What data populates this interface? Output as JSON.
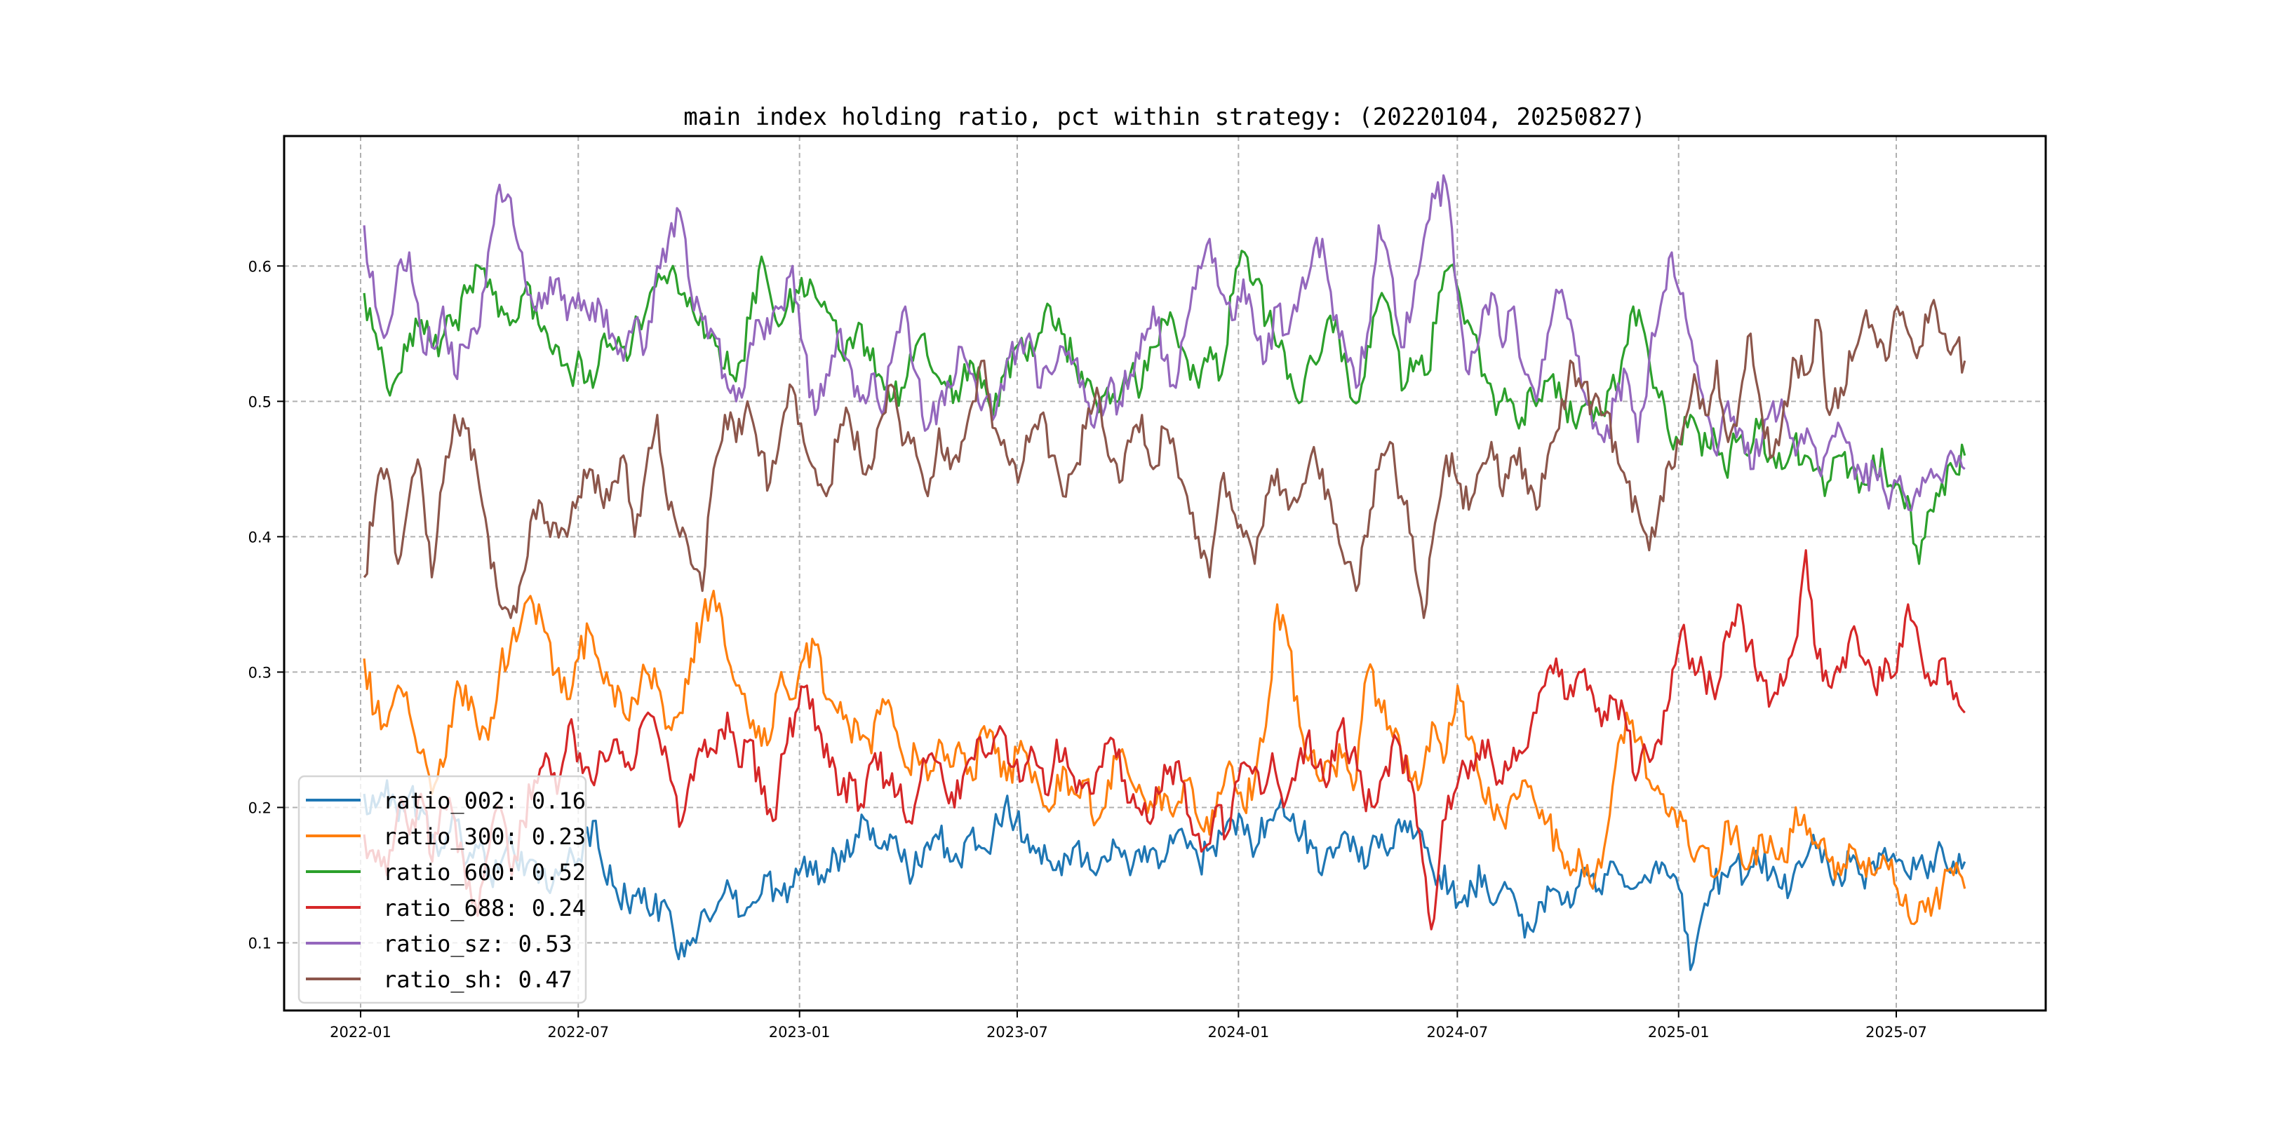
{
  "chart_data": {
    "type": "line",
    "title": "main index holding ratio, pct within strategy: (20220104, 20250827)",
    "xlabel": "",
    "ylabel": "",
    "x_range": [
      "2021-12-01",
      "2025-10-15"
    ],
    "ylim": [
      0.05,
      0.696
    ],
    "grid": true,
    "legend_position": "lower-left",
    "x_ticks": [
      "2022-01",
      "2022-07",
      "2023-01",
      "2023-07",
      "2024-01",
      "2024-07",
      "2025-01",
      "2025-07"
    ],
    "y_ticks": [
      "0.1",
      "0.2",
      "0.3",
      "0.4",
      "0.5",
      "0.6"
    ],
    "y_tick_values": [
      0.1,
      0.2,
      0.3,
      0.4,
      0.5,
      0.6
    ],
    "x_start": "2022-01-04",
    "x_end": "2025-08-27",
    "x_step": "biweekly",
    "series": [
      {
        "name": "ratio_002",
        "legend": "ratio_002: 0.16",
        "color": "#1f77b4",
        "values": [
          0.21,
          0.2,
          0.22,
          0.19,
          0.21,
          0.2,
          0.18,
          0.17,
          0.19,
          0.16,
          0.17,
          0.15,
          0.16,
          0.17,
          0.15,
          0.16,
          0.14,
          0.15,
          0.17,
          0.16,
          0.19,
          0.15,
          0.14,
          0.13,
          0.14,
          0.12,
          0.13,
          0.11,
          0.09,
          0.1,
          0.12,
          0.13,
          0.14,
          0.12,
          0.13,
          0.15,
          0.14,
          0.13,
          0.15,
          0.16,
          0.15,
          0.17,
          0.16,
          0.18,
          0.19,
          0.17,
          0.18,
          0.16,
          0.15,
          0.17,
          0.18,
          0.17,
          0.16,
          0.18,
          0.17,
          0.18,
          0.2,
          0.19,
          0.18,
          0.17,
          0.16,
          0.15,
          0.17,
          0.16,
          0.15,
          0.16,
          0.17,
          0.15,
          0.16,
          0.17,
          0.16,
          0.18,
          0.17,
          0.16,
          0.17,
          0.18,
          0.19,
          0.18,
          0.17,
          0.19,
          0.2,
          0.19,
          0.18,
          0.17,
          0.16,
          0.17,
          0.18,
          0.16,
          0.17,
          0.18,
          0.17,
          0.19,
          0.18,
          0.17,
          0.15,
          0.14,
          0.13,
          0.14,
          0.15,
          0.13,
          0.14,
          0.12,
          0.11,
          0.13,
          0.14,
          0.13,
          0.14,
          0.15,
          0.14,
          0.16,
          0.15,
          0.14,
          0.15,
          0.16,
          0.15,
          0.14,
          0.08,
          0.12,
          0.14,
          0.15,
          0.16,
          0.15,
          0.16,
          0.15,
          0.14,
          0.15,
          0.16,
          0.17,
          0.16,
          0.15,
          0.16,
          0.15,
          0.16,
          0.17,
          0.16,
          0.15,
          0.16,
          0.16,
          0.17,
          0.16,
          0.16
        ]
      },
      {
        "name": "ratio_300",
        "legend": "ratio_300: 0.23",
        "color": "#ff7f0e",
        "values": [
          0.31,
          0.27,
          0.26,
          0.29,
          0.27,
          0.24,
          0.21,
          0.23,
          0.28,
          0.29,
          0.26,
          0.25,
          0.3,
          0.32,
          0.34,
          0.35,
          0.33,
          0.3,
          0.28,
          0.31,
          0.33,
          0.3,
          0.29,
          0.27,
          0.28,
          0.3,
          0.29,
          0.26,
          0.27,
          0.31,
          0.34,
          0.36,
          0.32,
          0.29,
          0.27,
          0.26,
          0.25,
          0.3,
          0.28,
          0.31,
          0.32,
          0.28,
          0.27,
          0.26,
          0.25,
          0.24,
          0.28,
          0.26,
          0.23,
          0.24,
          0.22,
          0.25,
          0.23,
          0.24,
          0.22,
          0.26,
          0.24,
          0.22,
          0.24,
          0.23,
          0.21,
          0.2,
          0.23,
          0.21,
          0.22,
          0.19,
          0.22,
          0.24,
          0.22,
          0.21,
          0.2,
          0.21,
          0.2,
          0.22,
          0.19,
          0.18,
          0.21,
          0.23,
          0.2,
          0.22,
          0.26,
          0.35,
          0.32,
          0.26,
          0.24,
          0.22,
          0.23,
          0.24,
          0.22,
          0.3,
          0.28,
          0.26,
          0.24,
          0.22,
          0.23,
          0.26,
          0.24,
          0.29,
          0.25,
          0.22,
          0.2,
          0.19,
          0.21,
          0.22,
          0.2,
          0.19,
          0.17,
          0.15,
          0.16,
          0.14,
          0.17,
          0.23,
          0.27,
          0.25,
          0.22,
          0.21,
          0.2,
          0.19,
          0.16,
          0.17,
          0.15,
          0.19,
          0.17,
          0.16,
          0.18,
          0.17,
          0.16,
          0.2,
          0.18,
          0.17,
          0.16,
          0.15,
          0.17,
          0.16,
          0.15,
          0.16,
          0.14,
          0.12,
          0.13,
          0.12,
          0.14,
          0.15,
          0.14
        ]
      },
      {
        "name": "ratio_600",
        "legend": "ratio_600: 0.52",
        "color": "#2ca02c",
        "values": [
          0.58,
          0.55,
          0.51,
          0.52,
          0.55,
          0.56,
          0.54,
          0.55,
          0.56,
          0.58,
          0.6,
          0.59,
          0.57,
          0.56,
          0.58,
          0.57,
          0.55,
          0.54,
          0.52,
          0.53,
          0.51,
          0.55,
          0.54,
          0.53,
          0.56,
          0.58,
          0.59,
          0.6,
          0.58,
          0.56,
          0.55,
          0.54,
          0.52,
          0.53,
          0.58,
          0.6,
          0.56,
          0.57,
          0.58,
          0.59,
          0.57,
          0.56,
          0.53,
          0.55,
          0.54,
          0.52,
          0.5,
          0.51,
          0.53,
          0.55,
          0.52,
          0.51,
          0.5,
          0.53,
          0.51,
          0.49,
          0.52,
          0.54,
          0.53,
          0.55,
          0.57,
          0.55,
          0.53,
          0.51,
          0.5,
          0.51,
          0.5,
          0.52,
          0.51,
          0.54,
          0.56,
          0.55,
          0.53,
          0.51,
          0.54,
          0.52,
          0.58,
          0.61,
          0.59,
          0.56,
          0.54,
          0.52,
          0.5,
          0.53,
          0.55,
          0.56,
          0.52,
          0.5,
          0.54,
          0.58,
          0.55,
          0.51,
          0.53,
          0.52,
          0.58,
          0.6,
          0.57,
          0.55,
          0.52,
          0.49,
          0.5,
          0.48,
          0.51,
          0.5,
          0.52,
          0.5,
          0.48,
          0.5,
          0.49,
          0.51,
          0.53,
          0.57,
          0.55,
          0.51,
          0.48,
          0.47,
          0.49,
          0.46,
          0.48,
          0.45,
          0.47,
          0.46,
          0.48,
          0.46,
          0.45,
          0.47,
          0.46,
          0.45,
          0.44,
          0.46,
          0.45,
          0.44,
          0.46,
          0.45,
          0.44,
          0.43,
          0.38,
          0.42,
          0.44,
          0.45,
          0.46
        ]
      },
      {
        "name": "ratio_688",
        "legend": "ratio_688: 0.24",
        "color": "#d62728",
        "values": [
          0.18,
          0.16,
          0.15,
          0.2,
          0.18,
          0.21,
          0.16,
          0.2,
          0.19,
          0.14,
          0.12,
          0.17,
          0.2,
          0.15,
          0.19,
          0.22,
          0.24,
          0.21,
          0.26,
          0.24,
          0.22,
          0.24,
          0.25,
          0.23,
          0.24,
          0.27,
          0.25,
          0.22,
          0.19,
          0.22,
          0.25,
          0.24,
          0.27,
          0.23,
          0.25,
          0.21,
          0.19,
          0.24,
          0.27,
          0.29,
          0.26,
          0.23,
          0.21,
          0.22,
          0.2,
          0.24,
          0.22,
          0.21,
          0.19,
          0.22,
          0.24,
          0.22,
          0.2,
          0.23,
          0.25,
          0.24,
          0.26,
          0.23,
          0.22,
          0.24,
          0.21,
          0.25,
          0.23,
          0.22,
          0.21,
          0.23,
          0.25,
          0.22,
          0.2,
          0.19,
          0.21,
          0.23,
          0.22,
          0.18,
          0.17,
          0.2,
          0.18,
          0.22,
          0.23,
          0.21,
          0.24,
          0.2,
          0.22,
          0.25,
          0.23,
          0.22,
          0.26,
          0.24,
          0.21,
          0.2,
          0.23,
          0.25,
          0.22,
          0.18,
          0.11,
          0.19,
          0.21,
          0.23,
          0.24,
          0.25,
          0.22,
          0.23,
          0.24,
          0.27,
          0.29,
          0.31,
          0.28,
          0.3,
          0.29,
          0.26,
          0.28,
          0.27,
          0.22,
          0.24,
          0.25,
          0.28,
          0.33,
          0.31,
          0.3,
          0.28,
          0.33,
          0.35,
          0.32,
          0.3,
          0.28,
          0.29,
          0.32,
          0.39,
          0.31,
          0.29,
          0.3,
          0.33,
          0.31,
          0.29,
          0.31,
          0.3,
          0.35,
          0.32,
          0.29,
          0.31,
          0.28,
          0.27
        ]
      },
      {
        "name": "ratio_sz",
        "legend": "ratio_sz: 0.53",
        "color": "#9467bd",
        "values": [
          0.63,
          0.57,
          0.55,
          0.6,
          0.61,
          0.55,
          0.54,
          0.57,
          0.52,
          0.54,
          0.55,
          0.61,
          0.66,
          0.65,
          0.61,
          0.57,
          0.58,
          0.59,
          0.56,
          0.58,
          0.56,
          0.57,
          0.55,
          0.53,
          0.56,
          0.54,
          0.6,
          0.62,
          0.64,
          0.58,
          0.56,
          0.55,
          0.52,
          0.5,
          0.53,
          0.56,
          0.55,
          0.57,
          0.6,
          0.54,
          0.49,
          0.52,
          0.55,
          0.53,
          0.5,
          0.52,
          0.49,
          0.54,
          0.57,
          0.52,
          0.48,
          0.5,
          0.51,
          0.54,
          0.52,
          0.5,
          0.49,
          0.53,
          0.54,
          0.55,
          0.51,
          0.52,
          0.54,
          0.53,
          0.5,
          0.49,
          0.51,
          0.5,
          0.52,
          0.55,
          0.57,
          0.53,
          0.51,
          0.56,
          0.6,
          0.62,
          0.58,
          0.56,
          0.59,
          0.55,
          0.53,
          0.57,
          0.55,
          0.58,
          0.6,
          0.62,
          0.56,
          0.54,
          0.51,
          0.55,
          0.63,
          0.6,
          0.54,
          0.57,
          0.62,
          0.65,
          0.66,
          0.58,
          0.52,
          0.55,
          0.58,
          0.54,
          0.57,
          0.52,
          0.5,
          0.55,
          0.58,
          0.56,
          0.51,
          0.48,
          0.47,
          0.5,
          0.52,
          0.47,
          0.53,
          0.57,
          0.61,
          0.58,
          0.53,
          0.49,
          0.46,
          0.5,
          0.48,
          0.45,
          0.47,
          0.5,
          0.49,
          0.46,
          0.48,
          0.45,
          0.47,
          0.48,
          0.46,
          0.44,
          0.45,
          0.43,
          0.44,
          0.42,
          0.43,
          0.45,
          0.44,
          0.46,
          0.45
        ]
      },
      {
        "name": "ratio_sh",
        "legend": "ratio_sh: 0.47",
        "color": "#8c564b",
        "values": [
          0.37,
          0.43,
          0.45,
          0.38,
          0.43,
          0.45,
          0.37,
          0.44,
          0.49,
          0.48,
          0.45,
          0.4,
          0.35,
          0.34,
          0.37,
          0.42,
          0.41,
          0.41,
          0.4,
          0.43,
          0.45,
          0.43,
          0.44,
          0.46,
          0.4,
          0.45,
          0.49,
          0.42,
          0.4,
          0.38,
          0.36,
          0.45,
          0.49,
          0.47,
          0.5,
          0.46,
          0.44,
          0.48,
          0.51,
          0.47,
          0.45,
          0.43,
          0.47,
          0.49,
          0.46,
          0.45,
          0.49,
          0.51,
          0.47,
          0.46,
          0.43,
          0.48,
          0.45,
          0.47,
          0.5,
          0.53,
          0.48,
          0.46,
          0.44,
          0.47,
          0.49,
          0.46,
          0.43,
          0.45,
          0.48,
          0.51,
          0.46,
          0.44,
          0.47,
          0.49,
          0.45,
          0.48,
          0.46,
          0.43,
          0.4,
          0.37,
          0.44,
          0.42,
          0.4,
          0.38,
          0.43,
          0.45,
          0.42,
          0.43,
          0.46,
          0.45,
          0.41,
          0.38,
          0.36,
          0.4,
          0.45,
          0.47,
          0.43,
          0.4,
          0.34,
          0.41,
          0.46,
          0.44,
          0.42,
          0.45,
          0.47,
          0.43,
          0.46,
          0.45,
          0.42,
          0.46,
          0.48,
          0.53,
          0.51,
          0.5,
          0.49,
          0.47,
          0.44,
          0.42,
          0.39,
          0.43,
          0.45,
          0.48,
          0.52,
          0.49,
          0.53,
          0.47,
          0.5,
          0.55,
          0.49,
          0.46,
          0.5,
          0.53,
          0.52,
          0.56,
          0.49,
          0.51,
          0.53,
          0.56,
          0.55,
          0.53,
          0.57,
          0.55,
          0.54,
          0.57,
          0.55,
          0.54,
          0.53
        ]
      }
    ]
  }
}
